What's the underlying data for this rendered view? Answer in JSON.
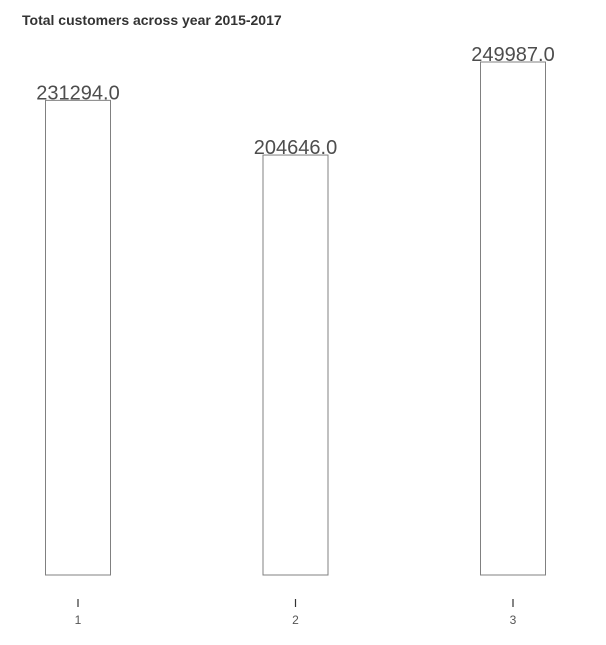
{
  "chart_data": {
    "type": "bar",
    "title": "Total customers across year 2015-2017",
    "categories": [
      "1",
      "2",
      "3"
    ],
    "values": [
      231294.0,
      204646.0,
      249987.0
    ],
    "data_labels": [
      "231294.0",
      "204646.0",
      "249987.0"
    ],
    "xlabel": "",
    "ylabel": "",
    "ylim": [
      0,
      249987.0
    ],
    "grid": false,
    "legend": "none",
    "colors": {
      "bar_fill": "#ffffff",
      "bar_stroke": "#808080",
      "label": "#4d4d4d",
      "tick": "#555555",
      "title": "#333333"
    }
  }
}
